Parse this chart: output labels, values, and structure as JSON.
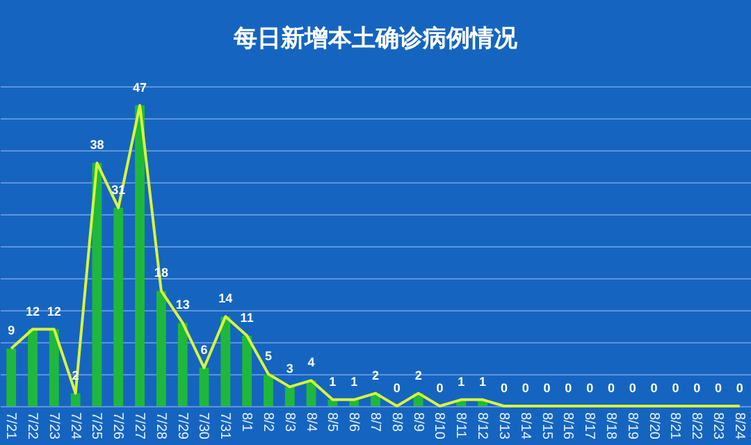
{
  "chart_data": {
    "type": "bar",
    "title": "每日新增本土确诊病例情况",
    "categories": [
      "7/21",
      "7/22",
      "7/23",
      "7/24",
      "7/25",
      "7/26",
      "7/27",
      "7/28",
      "7/29",
      "7/30",
      "7/31",
      "8/1",
      "8/2",
      "8/3",
      "8/4",
      "8/5",
      "8/6",
      "8/7",
      "8/8",
      "8/9",
      "8/10",
      "8/11",
      "8/12",
      "8/13",
      "8/14",
      "8/15",
      "8/16",
      "8/17",
      "8/18",
      "8/19",
      "8/20",
      "8/21",
      "8/22",
      "8/23",
      "8/24"
    ],
    "series": [
      {
        "color": "#1fb83c",
        "values": [
          9,
          12,
          12,
          2,
          38,
          31,
          47,
          18,
          13,
          6,
          14,
          11,
          5,
          3,
          4,
          1,
          1,
          2,
          0,
          2,
          0,
          1,
          1,
          0,
          0,
          0,
          0,
          0,
          0,
          0,
          0,
          0,
          0,
          0,
          0
        ],
        "value_labels": [
          "9",
          "12",
          "12",
          "2",
          "38",
          "31",
          "47",
          "18",
          "13",
          "6",
          "14",
          "11",
          "5",
          "3",
          "4",
          "1",
          "1",
          "2",
          "0",
          "2",
          "0",
          "1",
          "1",
          "0",
          "0",
          "0",
          "0",
          "0",
          "0",
          "0",
          "0",
          "0",
          "0",
          "0",
          "0"
        ]
      },
      {
        "type": "line",
        "color": "#d6f53c",
        "values": [
          9,
          12,
          12,
          2,
          38,
          31,
          47,
          18,
          13,
          6,
          14,
          11,
          5,
          3,
          4,
          1,
          1,
          2,
          0,
          2,
          0,
          1,
          1,
          0,
          0,
          0,
          0,
          0,
          0,
          0,
          0,
          0,
          0,
          0,
          0
        ]
      }
    ],
    "ylim": [
      0,
      50
    ],
    "yticks": [
      {
        "value": 0,
        "label": null
      },
      {
        "value": 5,
        "label": null
      },
      {
        "value": 10,
        "label": null
      },
      {
        "value": 15,
        "label": null
      },
      {
        "value": 20,
        "label": null
      },
      {
        "value": 25,
        "label": null
      },
      {
        "value": 30,
        "label": null
      },
      {
        "value": 35,
        "label": null
      },
      {
        "value": 40,
        "label": null
      },
      {
        "value": 45,
        "label": null
      },
      {
        "value": 50,
        "label": null
      }
    ],
    "grid": "y",
    "tick_labels": "x",
    "marker": "none",
    "line_style": "solid"
  }
}
